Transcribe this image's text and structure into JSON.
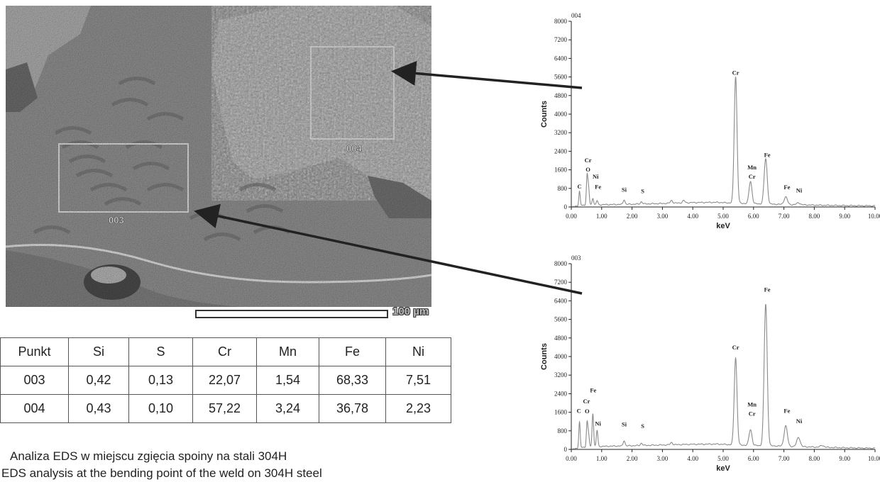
{
  "micrograph": {
    "region_labels": [
      "004",
      "003"
    ],
    "scale_label": "100 µm"
  },
  "table": {
    "headers": [
      "Punkt",
      "Si",
      "S",
      "Cr",
      "Mn",
      "Fe",
      "Ni"
    ],
    "rows": [
      [
        "003",
        "0,42",
        "0,13",
        "22,07",
        "1,54",
        "68,33",
        "7,51"
      ],
      [
        "004",
        "0,43",
        "0,10",
        "57,22",
        "3,24",
        "36,78",
        "2,23"
      ]
    ]
  },
  "caption": {
    "line1": "Analiza EDS w miejscu zgięcia spoiny na stali 304H",
    "line2": "EDS analysis at the bending point of the weld on 304H steel"
  },
  "colors": {
    "spectrum_line": "#8a8a8a",
    "arrow": "#222222",
    "box": "#d8d8d8"
  },
  "chart_data": [
    {
      "type": "line",
      "title": "004",
      "xlabel": "keV",
      "ylabel": "Counts",
      "xlim": [
        0,
        10
      ],
      "ylim": [
        0,
        8000
      ],
      "xticks": [
        "0.00",
        "1.00",
        "2.00",
        "3.00",
        "4.00",
        "5.00",
        "6.00",
        "7.00",
        "8.00",
        "9.00",
        "10.00"
      ],
      "yticks": [
        "0",
        "800",
        "1600",
        "2400",
        "3200",
        "4000",
        "4800",
        "5600",
        "6400",
        "7200",
        "8000"
      ],
      "baseline": [
        [
          0.3,
          70
        ],
        [
          1.0,
          100
        ],
        [
          2.0,
          120
        ],
        [
          3.0,
          150
        ],
        [
          4.0,
          190
        ],
        [
          4.8,
          200
        ],
        [
          5.3,
          170
        ],
        [
          6.0,
          140
        ],
        [
          7.0,
          110
        ],
        [
          8.0,
          80
        ],
        [
          9.0,
          60
        ],
        [
          10.0,
          50
        ]
      ],
      "peaks": [
        {
          "x": 0.27,
          "y": 600
        },
        {
          "x": 0.52,
          "y": 1250
        },
        {
          "x": 0.57,
          "y": 700
        },
        {
          "x": 0.71,
          "y": 300
        },
        {
          "x": 0.85,
          "y": 180
        },
        {
          "x": 1.74,
          "y": 200
        },
        {
          "x": 2.31,
          "y": 100
        },
        {
          "x": 3.3,
          "y": 120
        },
        {
          "x": 3.7,
          "y": 100
        },
        {
          "x": 5.41,
          "y": 5450
        },
        {
          "x": 5.9,
          "y": 960
        },
        {
          "x": 6.4,
          "y": 1950
        },
        {
          "x": 7.06,
          "y": 330
        },
        {
          "x": 7.48,
          "y": 90
        }
      ],
      "peak_labels": [
        {
          "text": "C",
          "x": 0.27,
          "y": 800
        },
        {
          "text": "Cr",
          "x": 0.55,
          "y": 1920
        },
        {
          "text": "O",
          "x": 0.55,
          "y": 1520
        },
        {
          "text": "Ni",
          "x": 0.8,
          "y": 1220
        },
        {
          "text": "Fe",
          "x": 0.88,
          "y": 780
        },
        {
          "text": "Si",
          "x": 1.74,
          "y": 650
        },
        {
          "text": "S",
          "x": 2.35,
          "y": 600
        },
        {
          "text": "Cr",
          "x": 5.41,
          "y": 5700
        },
        {
          "text": "Mn",
          "x": 5.95,
          "y": 1620
        },
        {
          "text": "Cr",
          "x": 5.95,
          "y": 1220
        },
        {
          "text": "Fe",
          "x": 6.45,
          "y": 2150
        },
        {
          "text": "Fe",
          "x": 7.1,
          "y": 770
        },
        {
          "text": "Ni",
          "x": 7.5,
          "y": 620
        }
      ]
    },
    {
      "type": "line",
      "title": "003",
      "xlabel": "keV",
      "ylabel": "Counts",
      "xlim": [
        0,
        10
      ],
      "ylim": [
        0,
        8000
      ],
      "xticks": [
        "0.00",
        "1.00",
        "2.00",
        "3.00",
        "4.00",
        "5.00",
        "6.00",
        "7.00",
        "8.00",
        "9.00",
        "10.00"
      ],
      "yticks": [
        "0",
        "800",
        "1600",
        "2400",
        "3200",
        "4000",
        "4800",
        "5600",
        "6400",
        "7200",
        "8000"
      ],
      "baseline": [
        [
          0.3,
          80
        ],
        [
          1.0,
          130
        ],
        [
          2.0,
          160
        ],
        [
          3.0,
          190
        ],
        [
          4.0,
          220
        ],
        [
          4.8,
          230
        ],
        [
          5.3,
          200
        ],
        [
          6.0,
          170
        ],
        [
          7.0,
          140
        ],
        [
          8.0,
          100
        ],
        [
          9.0,
          70
        ],
        [
          10.0,
          50
        ]
      ],
      "peaks": [
        {
          "x": 0.27,
          "y": 1100
        },
        {
          "x": 0.52,
          "y": 1050
        },
        {
          "x": 0.57,
          "y": 500
        },
        {
          "x": 0.71,
          "y": 1450
        },
        {
          "x": 0.85,
          "y": 700
        },
        {
          "x": 1.74,
          "y": 230
        },
        {
          "x": 2.31,
          "y": 100
        },
        {
          "x": 3.3,
          "y": 100
        },
        {
          "x": 5.41,
          "y": 3750
        },
        {
          "x": 5.9,
          "y": 680
        },
        {
          "x": 6.4,
          "y": 6100
        },
        {
          "x": 7.06,
          "y": 880
        },
        {
          "x": 7.48,
          "y": 400
        },
        {
          "x": 8.26,
          "y": 80
        }
      ],
      "peak_labels": [
        {
          "text": "C",
          "x": 0.25,
          "y": 1580
        },
        {
          "text": "Cr",
          "x": 0.5,
          "y": 1980
        },
        {
          "text": "O",
          "x": 0.52,
          "y": 1550
        },
        {
          "text": "Fe",
          "x": 0.72,
          "y": 2460
        },
        {
          "text": "Ni",
          "x": 0.88,
          "y": 1030
        },
        {
          "text": "Si",
          "x": 1.74,
          "y": 1000
        },
        {
          "text": "S",
          "x": 2.35,
          "y": 920
        },
        {
          "text": "Cr",
          "x": 5.41,
          "y": 4300
        },
        {
          "text": "Mn",
          "x": 5.95,
          "y": 1850
        },
        {
          "text": "Cr",
          "x": 5.95,
          "y": 1450
        },
        {
          "text": "Fe",
          "x": 6.45,
          "y": 6800
        },
        {
          "text": "Fe",
          "x": 7.1,
          "y": 1580
        },
        {
          "text": "Ni",
          "x": 7.5,
          "y": 1130
        }
      ]
    }
  ]
}
